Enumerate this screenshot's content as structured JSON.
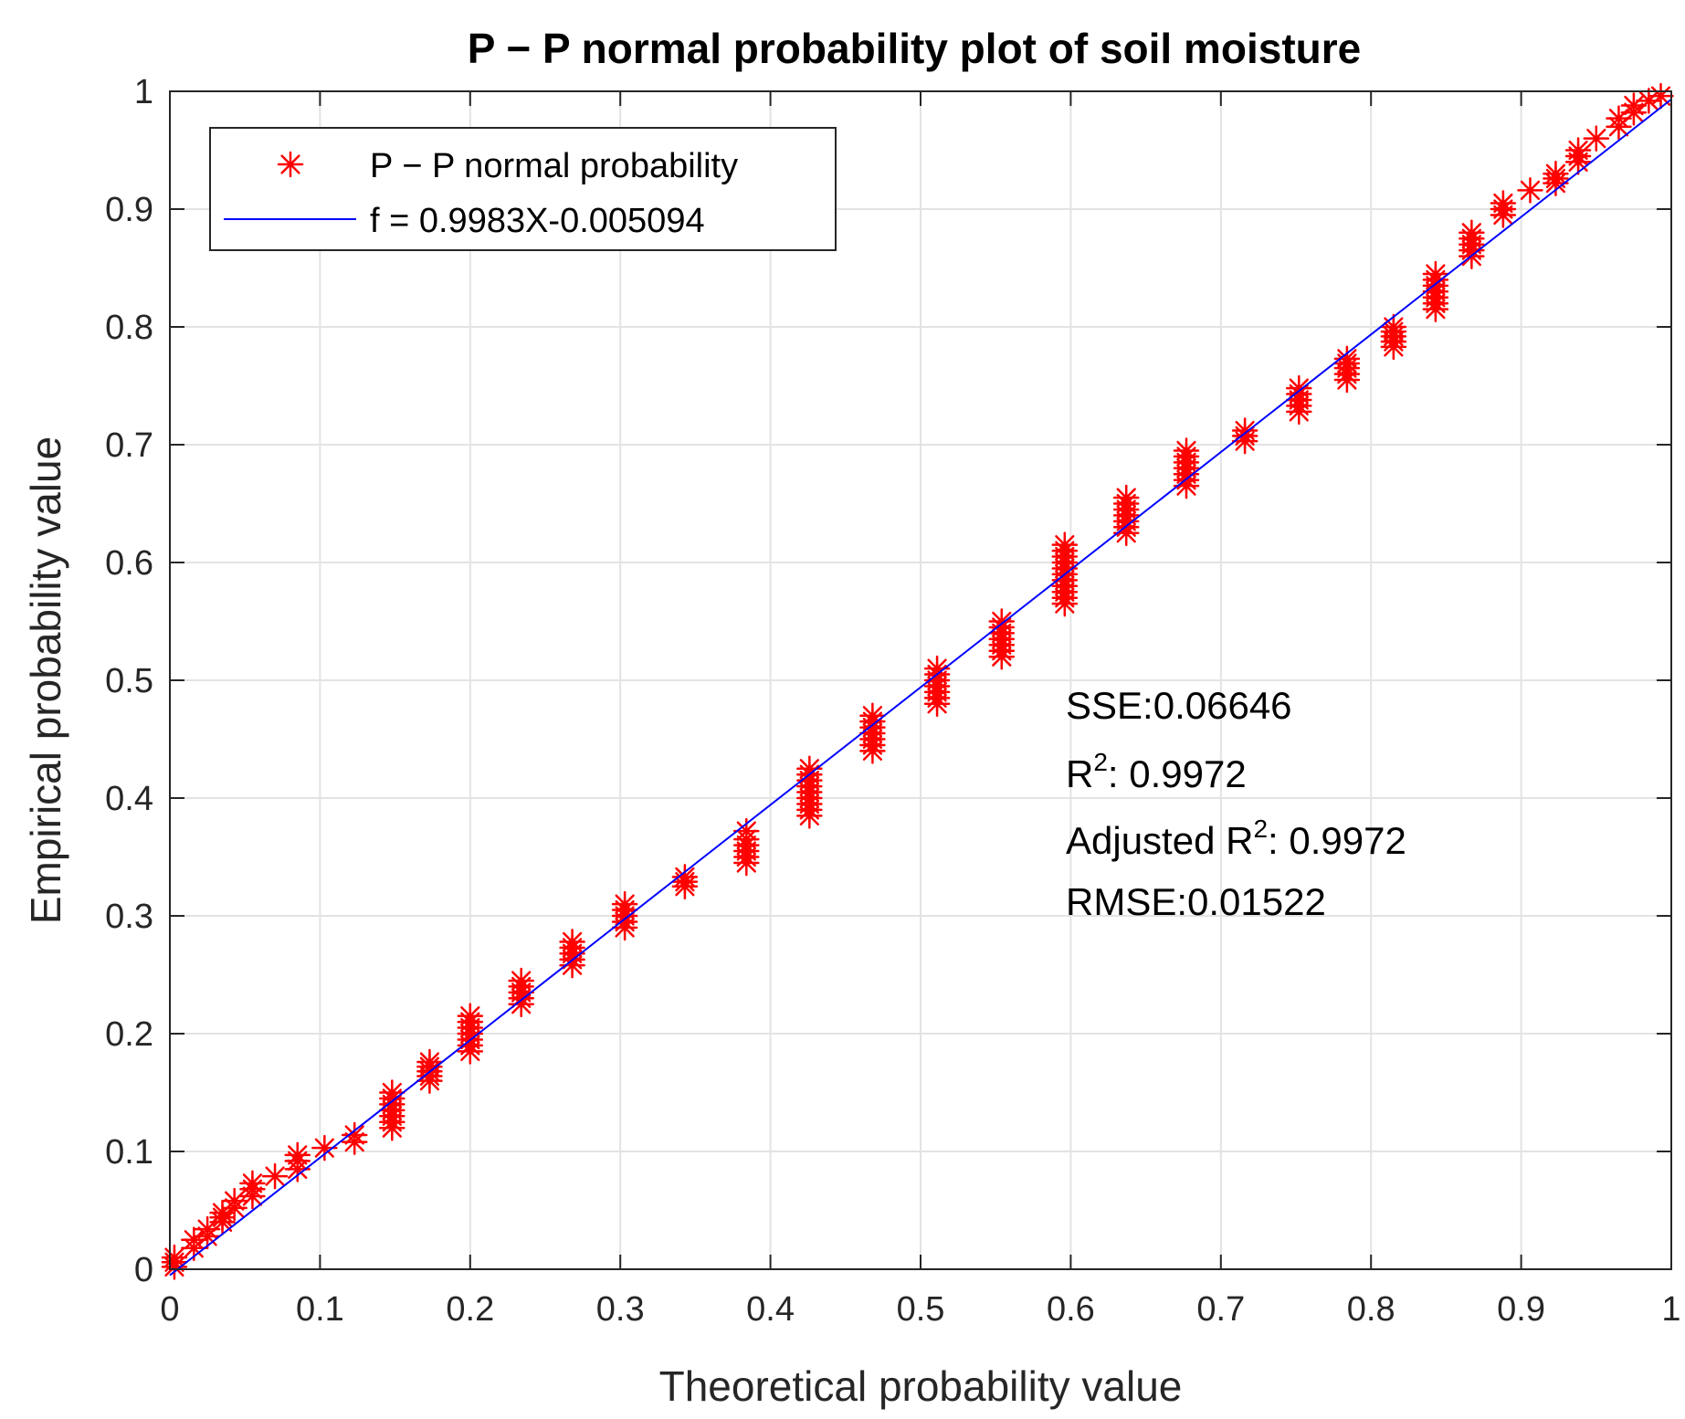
{
  "chart_data": {
    "type": "scatter",
    "title": "P − P normal probability plot of soil moisture",
    "xlabel": "Theoretical probability value",
    "ylabel": "Empirical probability value",
    "xlim": [
      0,
      1
    ],
    "ylim": [
      0,
      1
    ],
    "xticks": [
      "0",
      "0.1",
      "0.2",
      "0.3",
      "0.4",
      "0.5",
      "0.6",
      "0.7",
      "0.8",
      "0.9",
      "1"
    ],
    "yticks": [
      "0",
      "0.1",
      "0.2",
      "0.3",
      "0.4",
      "0.5",
      "0.6",
      "0.7",
      "0.8",
      "0.9",
      "1"
    ],
    "grid": true,
    "legend_position": "top-left",
    "colors": {
      "marker": "#ff0000",
      "fit_line": "#0000ff",
      "grid": "#e3e3e3",
      "axis": "#262626"
    },
    "series": [
      {
        "name": "P − P normal probability",
        "kind": "scatter",
        "marker": "asterisk",
        "clusters": [
          {
            "x": 0.003,
            "y": [
              0.002,
              0.006,
              0.01
            ]
          },
          {
            "x": 0.016,
            "y": [
              0.018,
              0.025
            ]
          },
          {
            "x": 0.025,
            "y": [
              0.028,
              0.034
            ]
          },
          {
            "x": 0.035,
            "y": [
              0.04,
              0.048
            ]
          },
          {
            "x": 0.043,
            "y": [
              0.052,
              0.058
            ]
          },
          {
            "x": 0.055,
            "y": [
              0.062,
              0.068,
              0.073
            ]
          },
          {
            "x": 0.07,
            "y": [
              0.079
            ]
          },
          {
            "x": 0.085,
            "y": [
              0.085,
              0.092,
              0.097
            ]
          },
          {
            "x": 0.103,
            "y": [
              0.103
            ]
          },
          {
            "x": 0.123,
            "y": [
              0.108,
              0.114
            ]
          },
          {
            "x": 0.148,
            "y": [
              0.12,
              0.13,
              0.14,
              0.15
            ]
          },
          {
            "x": 0.173,
            "y": [
              0.16,
              0.168,
              0.176
            ]
          },
          {
            "x": 0.2,
            "y": [
              0.185,
              0.195,
              0.205,
              0.215
            ]
          },
          {
            "x": 0.234,
            "y": [
              0.225,
              0.235,
              0.245
            ]
          },
          {
            "x": 0.268,
            "y": [
              0.258,
              0.268,
              0.278
            ]
          },
          {
            "x": 0.303,
            "y": [
              0.29,
              0.3,
              0.31
            ]
          },
          {
            "x": 0.343,
            "y": [
              0.325,
              0.333
            ]
          },
          {
            "x": 0.384,
            "y": [
              0.345,
              0.355,
              0.365,
              0.372
            ]
          },
          {
            "x": 0.426,
            "y": [
              0.385,
              0.395,
              0.405,
              0.415,
              0.425
            ]
          },
          {
            "x": 0.468,
            "y": [
              0.44,
              0.45,
              0.46,
              0.47
            ]
          },
          {
            "x": 0.511,
            "y": [
              0.48,
              0.49,
              0.5,
              0.51
            ]
          },
          {
            "x": 0.554,
            "y": [
              0.52,
              0.53,
              0.54,
              0.55
            ]
          },
          {
            "x": 0.596,
            "y": [
              0.565,
              0.575,
              0.585,
              0.595,
              0.605,
              0.615
            ]
          },
          {
            "x": 0.637,
            "y": [
              0.625,
              0.635,
              0.645,
              0.655
            ]
          },
          {
            "x": 0.677,
            "y": [
              0.665,
              0.675,
              0.685,
              0.695
            ]
          },
          {
            "x": 0.716,
            "y": [
              0.703,
              0.712
            ]
          },
          {
            "x": 0.752,
            "y": [
              0.728,
              0.738,
              0.748
            ]
          },
          {
            "x": 0.784,
            "y": [
              0.755,
              0.765,
              0.773
            ]
          },
          {
            "x": 0.815,
            "y": [
              0.783,
              0.792,
              0.8
            ]
          },
          {
            "x": 0.843,
            "y": [
              0.815,
              0.825,
              0.835,
              0.845
            ]
          },
          {
            "x": 0.867,
            "y": [
              0.86,
              0.87,
              0.88
            ]
          },
          {
            "x": 0.888,
            "y": [
              0.895,
              0.905
            ]
          },
          {
            "x": 0.906,
            "y": [
              0.916
            ]
          },
          {
            "x": 0.923,
            "y": [
              0.922,
              0.93
            ]
          },
          {
            "x": 0.938,
            "y": [
              0.94,
              0.95
            ]
          },
          {
            "x": 0.95,
            "y": [
              0.96
            ]
          },
          {
            "x": 0.965,
            "y": [
              0.97,
              0.977
            ]
          },
          {
            "x": 0.975,
            "y": [
              0.982,
              0.988
            ]
          },
          {
            "x": 0.985,
            "y": [
              0.992
            ]
          },
          {
            "x": 0.993,
            "y": [
              0.996
            ]
          }
        ]
      },
      {
        "name": "f = 0.9983X-0.005094",
        "kind": "line",
        "slope": 0.9983,
        "intercept": -0.005094,
        "x_range": [
          0,
          1
        ]
      }
    ],
    "annotations": {
      "sse": "SSE:0.06646",
      "r2_base": "R",
      "r2_sup": "2",
      "r2_value": ": 0.9972",
      "adj_r2_base": "Adjusted R",
      "adj_r2_sup": "2",
      "adj_r2_value": ": 0.9972",
      "rmse": "RMSE:0.01522"
    }
  }
}
